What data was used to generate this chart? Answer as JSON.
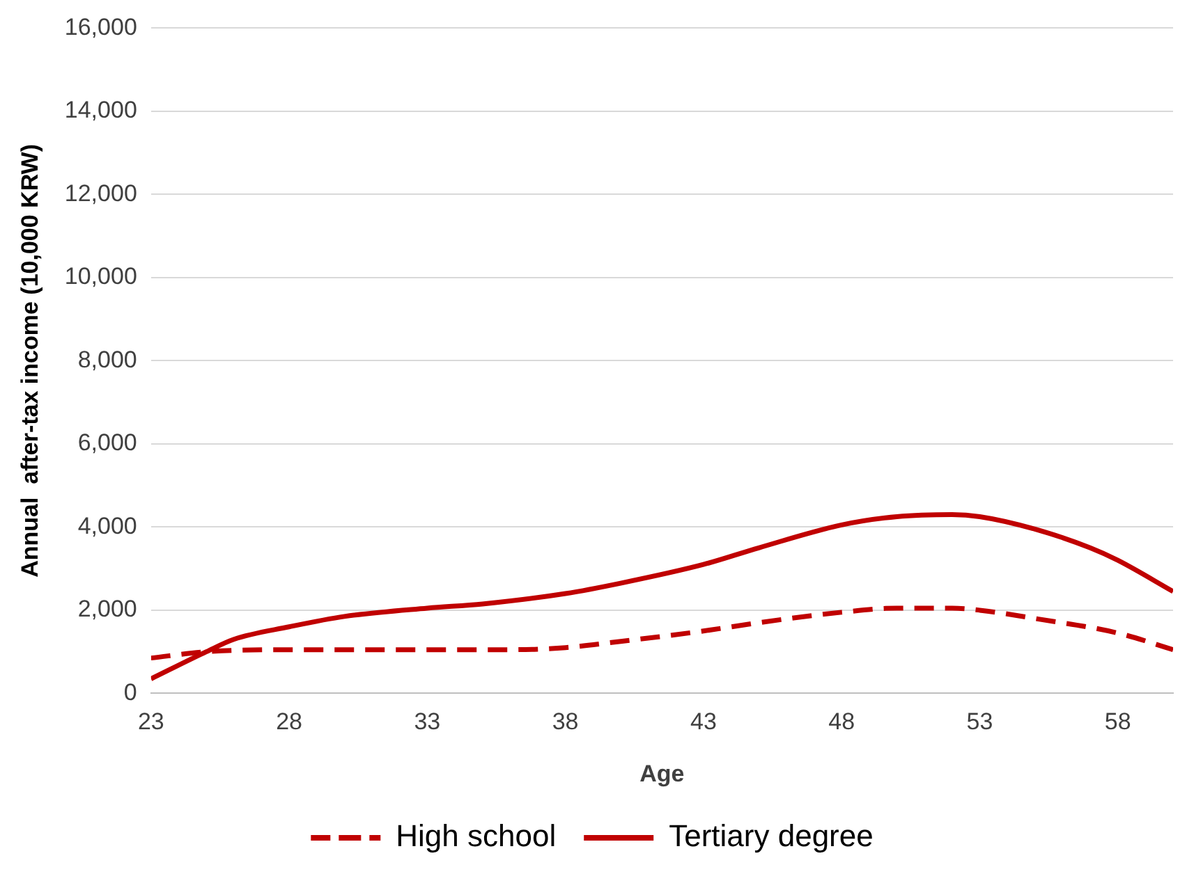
{
  "chart_data": {
    "type": "line",
    "xlabel": "Age",
    "ylabel": "Annual  after-tax income (10,000 KRW)",
    "xlim": [
      23,
      60
    ],
    "xticks": [
      23,
      28,
      33,
      38,
      43,
      48,
      53,
      58
    ],
    "ylim": [
      0,
      16000
    ],
    "yticks": [
      0,
      {
        "value": 2000,
        "label": "2,000"
      },
      {
        "value": 4000,
        "label": "4,000"
      },
      {
        "value": 6000,
        "label": "6,000"
      },
      {
        "value": 8000,
        "label": "8,000"
      },
      {
        "value": 10000,
        "label": "10,000"
      },
      {
        "value": 12000,
        "label": "12,000"
      },
      {
        "value": 14000,
        "label": "14,000"
      },
      {
        "value": 16000,
        "label": "16,000"
      }
    ],
    "grid": "y",
    "legend": "bottom",
    "marker": "none",
    "series": [
      {
        "name": "High school",
        "color": "#c00000",
        "line_style": "dashed",
        "x": [
          23,
          25,
          28,
          33,
          36,
          38,
          40,
          43,
          45,
          48,
          50,
          52,
          53,
          55,
          58,
          60
        ],
        "values": [
          850,
          1000,
          1050,
          1050,
          1050,
          1100,
          1250,
          1500,
          1700,
          1950,
          2050,
          2050,
          2000,
          1800,
          1450,
          1050
        ]
      },
      {
        "name": "Tertiary degree",
        "color": "#c00000",
        "line_style": "solid",
        "x": [
          23,
          25,
          26,
          28,
          30,
          33,
          35,
          38,
          40,
          43,
          45,
          48,
          50,
          52,
          53,
          55,
          57,
          58,
          60
        ],
        "values": [
          350,
          1000,
          1300,
          1600,
          1850,
          2050,
          2150,
          2400,
          2650,
          3100,
          3500,
          4050,
          4250,
          4300,
          4250,
          3950,
          3500,
          3200,
          2450
        ]
      }
    ]
  }
}
